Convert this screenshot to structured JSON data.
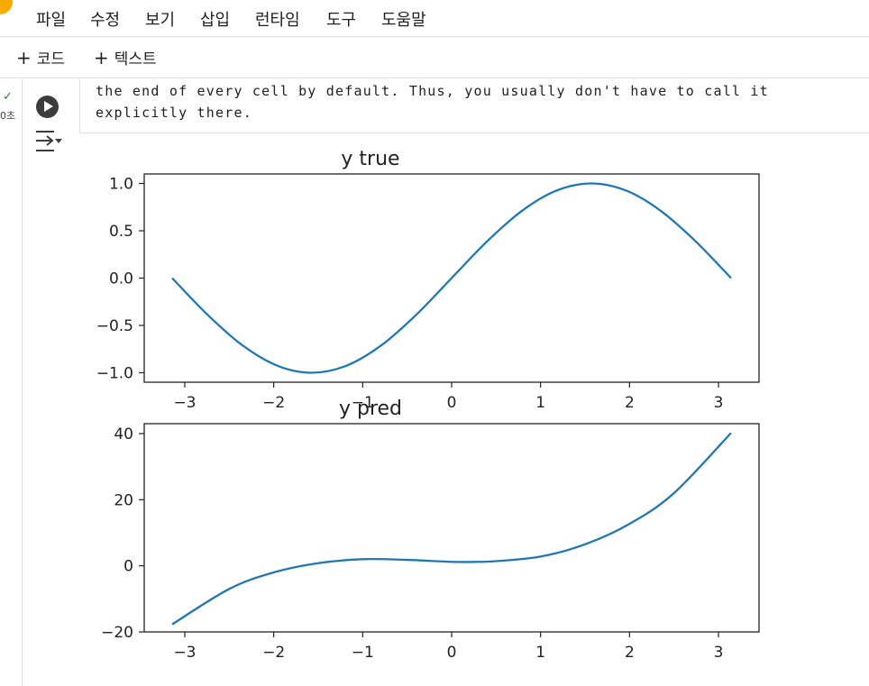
{
  "menu": [
    "파일",
    "수정",
    "보기",
    "삽입",
    "런타임",
    "도구",
    "도움말"
  ],
  "toolbar": {
    "add_code": "코드",
    "add_text": "텍스트"
  },
  "cell": {
    "exec_time": "0초",
    "code_lines": [
      "the end of every cell by default. Thus, you usually don't have to call it",
      "explicitly there."
    ]
  },
  "chart_data": [
    {
      "type": "line",
      "title": "y true",
      "xlim": [
        -3.14159,
        3.14159
      ],
      "ylim": [
        -1.1,
        1.1
      ],
      "xticks": [
        -3,
        -2,
        -1,
        0,
        1,
        2,
        3
      ],
      "yticks": [
        -1.0,
        -0.5,
        0.0,
        0.5,
        1.0
      ],
      "xtick_labels": [
        "−3",
        "−2",
        "−1",
        "0",
        "1",
        "2",
        "3"
      ],
      "ytick_labels": [
        "−1.0",
        "−0.5",
        "0.0",
        "0.5",
        "1.0"
      ],
      "color": "#1f77b4",
      "x": [
        -3.1416,
        -2.7489,
        -2.3562,
        -1.9635,
        -1.5708,
        -1.1781,
        -0.7854,
        -0.3927,
        0.0,
        0.3927,
        0.7854,
        1.1781,
        1.5708,
        1.9635,
        2.3562,
        2.7489,
        3.1416
      ],
      "y": [
        0.0,
        -0.383,
        -0.707,
        -0.924,
        -1.0,
        -0.924,
        -0.707,
        -0.383,
        0.0,
        0.383,
        0.707,
        0.924,
        1.0,
        0.924,
        0.707,
        0.383,
        0.0
      ]
    },
    {
      "type": "line",
      "title": "y pred",
      "xlim": [
        -3.14159,
        3.14159
      ],
      "ylim": [
        -20,
        43
      ],
      "xticks": [
        -3,
        -2,
        -1,
        0,
        1,
        2,
        3
      ],
      "yticks": [
        -20,
        0,
        20,
        40
      ],
      "xtick_labels": [
        "−3",
        "−2",
        "−1",
        "0",
        "1",
        "2",
        "3"
      ],
      "ytick_labels": [
        "−20",
        "0",
        "20",
        "40"
      ],
      "color": "#1f77b4",
      "x": [
        -3.1416,
        -2.5,
        -2.0,
        -1.5,
        -1.0,
        -0.5,
        0.0,
        0.3,
        0.5,
        1.0,
        1.5,
        2.0,
        2.5,
        3.1416
      ],
      "y": [
        -17.7,
        -7.0,
        -2.0,
        0.8,
        2.0,
        1.8,
        1.2,
        1.2,
        1.4,
        2.8,
        6.5,
        12.7,
        22.0,
        40.2
      ]
    }
  ]
}
